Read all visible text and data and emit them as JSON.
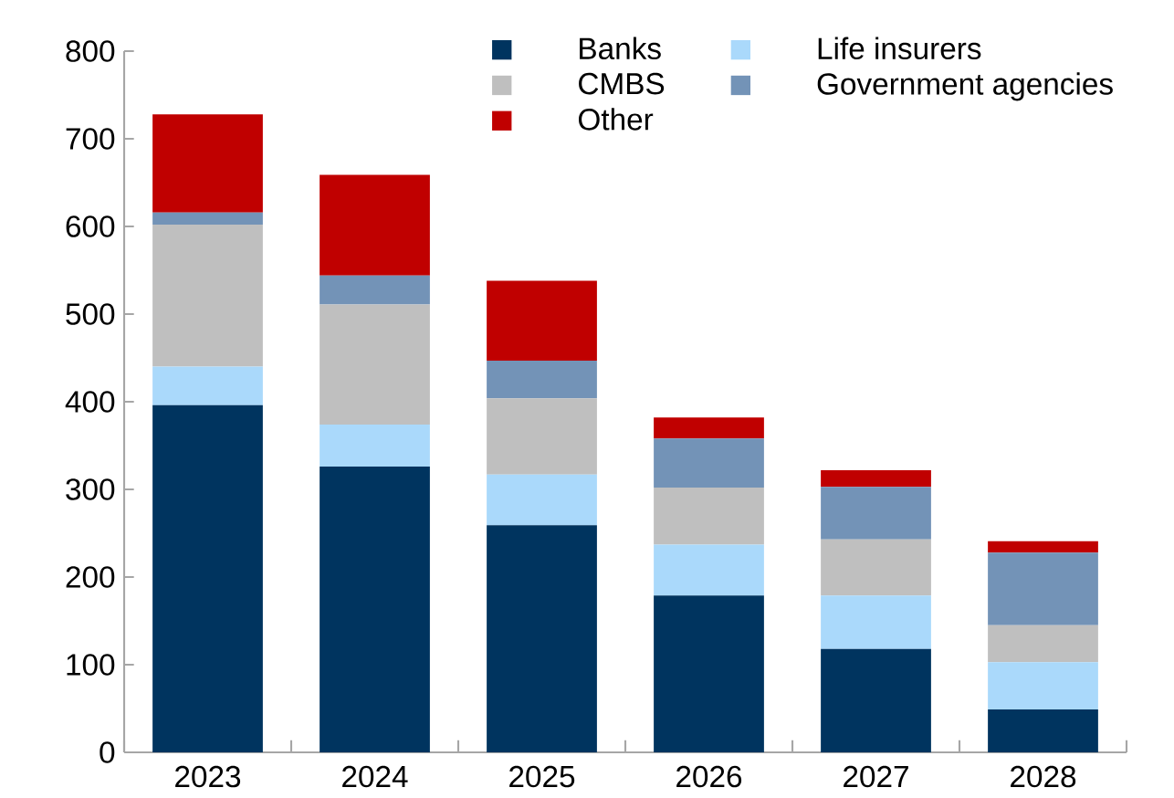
{
  "chart_data": {
    "type": "bar",
    "stacked": true,
    "categories": [
      "2023",
      "2024",
      "2025",
      "2026",
      "2027",
      "2028"
    ],
    "series": [
      {
        "name": "Banks",
        "color": "#00345f",
        "values": [
          396,
          326,
          259,
          179,
          118,
          49
        ]
      },
      {
        "name": "Life insurers",
        "color": "#aad9fb",
        "values": [
          44,
          48,
          58,
          58,
          61,
          54
        ]
      },
      {
        "name": "CMBS",
        "color": "#bfbfbf",
        "values": [
          162,
          137,
          87,
          65,
          64,
          42
        ]
      },
      {
        "name": "Government agencies",
        "color": "#7393b7",
        "values": [
          14,
          33,
          43,
          56,
          60,
          83
        ]
      },
      {
        "name": "Other",
        "color": "#c00000",
        "values": [
          112,
          115,
          91,
          24,
          19,
          13
        ]
      }
    ],
    "ylim": [
      0,
      800
    ],
    "yticks": [
      0,
      100,
      200,
      300,
      400,
      500,
      600,
      700,
      800
    ],
    "grid": false,
    "legend": "top right"
  }
}
